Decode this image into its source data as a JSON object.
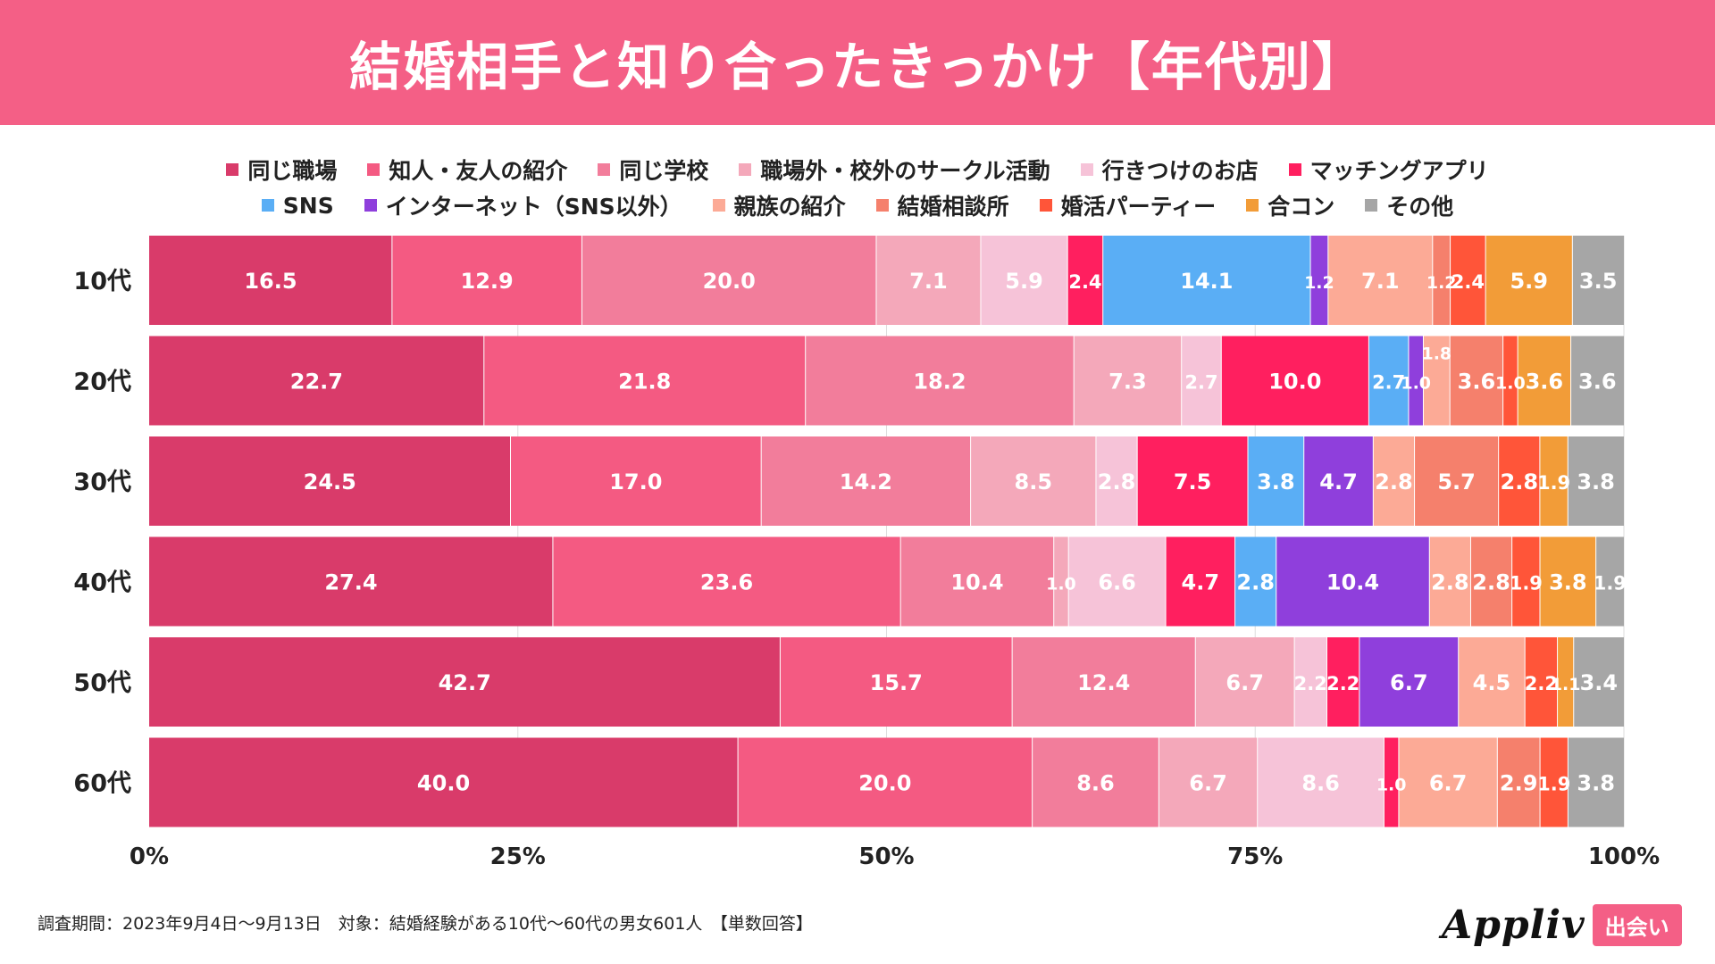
{
  "header": {
    "title": "結婚相手と知り合ったきっかけ【年代別】"
  },
  "legend_rows": [
    [
      0,
      1,
      2,
      3,
      4,
      5
    ],
    [
      6,
      7,
      8,
      9,
      10,
      11,
      12
    ]
  ],
  "chart_data": {
    "type": "bar",
    "orientation": "horizontal",
    "stacked": true,
    "title": "結婚相手と知り合ったきっかけ【年代別】",
    "unit": "%",
    "xlim": [
      0,
      100
    ],
    "x_ticks": [
      0,
      25,
      50,
      75,
      100
    ],
    "x_tick_labels": [
      "0%",
      "25%",
      "50%",
      "75%",
      "100%"
    ],
    "categories": [
      "10代",
      "20代",
      "30代",
      "40代",
      "50代",
      "60代"
    ],
    "legend_placement": "top",
    "series": [
      {
        "name": "同じ職場",
        "color": "#d93b6a",
        "values": [
          16.5,
          22.7,
          24.5,
          27.4,
          42.7,
          40.0
        ]
      },
      {
        "name": "知人・友人の紹介",
        "color": "#f45a82",
        "values": [
          12.9,
          21.8,
          17.0,
          23.6,
          15.7,
          20.0
        ]
      },
      {
        "name": "同じ学校",
        "color": "#f27d9b",
        "values": [
          20.0,
          18.2,
          14.2,
          10.4,
          12.4,
          8.6
        ]
      },
      {
        "name": "職場外・校外のサークル活動",
        "color": "#f4a8ba",
        "values": [
          7.1,
          7.3,
          8.5,
          1.0,
          6.7,
          6.7
        ]
      },
      {
        "name": "行きつけのお店",
        "color": "#f6c3d8",
        "values": [
          5.9,
          2.7,
          2.8,
          6.6,
          2.2,
          8.6
        ]
      },
      {
        "name": "マッチングアプリ",
        "color": "#ff1f5f",
        "values": [
          2.4,
          10.0,
          7.5,
          4.7,
          2.2,
          1.0
        ]
      },
      {
        "name": "SNS",
        "color": "#5aaef5",
        "values": [
          14.1,
          2.7,
          3.8,
          2.8,
          0,
          0
        ]
      },
      {
        "name": "インターネット（SNS以外）",
        "color": "#8f3fdc",
        "values": [
          1.2,
          1.0,
          4.7,
          10.4,
          6.7,
          0
        ]
      },
      {
        "name": "親族の紹介",
        "color": "#fcaa96",
        "values": [
          7.1,
          1.8,
          2.8,
          2.8,
          4.5,
          6.7
        ]
      },
      {
        "name": "結婚相談所",
        "color": "#f5806c",
        "values": [
          1.2,
          3.6,
          5.7,
          2.8,
          0,
          2.9
        ]
      },
      {
        "name": "婚活パーティー",
        "color": "#ff5539",
        "values": [
          2.4,
          1.0,
          2.8,
          1.9,
          2.2,
          1.9
        ]
      },
      {
        "name": "合コン",
        "color": "#f29c38",
        "values": [
          5.9,
          3.6,
          1.9,
          3.8,
          1.1,
          0
        ]
      },
      {
        "name": "その他",
        "color": "#a6a6a6",
        "values": [
          3.5,
          3.6,
          3.8,
          1.9,
          3.4,
          3.8
        ]
      }
    ]
  },
  "footer": {
    "note": "調査期間：2023年9月4日〜9月13日　対象：結婚経験がある10代〜60代の男女601人　【単数回答】",
    "logo": "Appliv",
    "badge": "出会い"
  }
}
